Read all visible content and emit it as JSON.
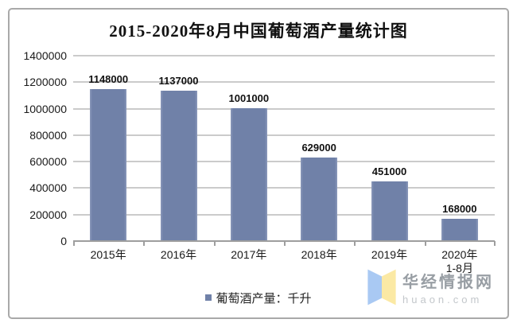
{
  "chart_data": {
    "type": "bar",
    "title": "2015-2020年8月中国葡萄酒产量统计图",
    "categories": [
      "2015年",
      "2016年",
      "2017年",
      "2018年",
      "2019年",
      "2020年\n1-8月"
    ],
    "values": [
      1148000,
      1137000,
      1001000,
      629000,
      451000,
      168000
    ],
    "value_labels": [
      "1148000",
      "1137000",
      "1001000",
      "629000",
      "451000",
      "168000"
    ],
    "xlabel": "",
    "ylabel": "",
    "ylim": [
      0,
      1400000
    ],
    "yticks": [
      0,
      200000,
      400000,
      600000,
      800000,
      1000000,
      1200000,
      1400000
    ],
    "grid": true,
    "legend": {
      "label": "葡萄酒产量：千升",
      "position": "bottom"
    },
    "bar_color": "#7081A8"
  },
  "watermark": {
    "brand": "华经情报网",
    "domain": "huaon.com",
    "logo_blue": "#A9C9F3",
    "logo_yellow": "#FBE9A4"
  },
  "colors": {
    "gridline": "#CBCBCB",
    "axis": "#9E9E9E",
    "frame_border": "#A9A9A9",
    "text": "#1A1A1A"
  }
}
